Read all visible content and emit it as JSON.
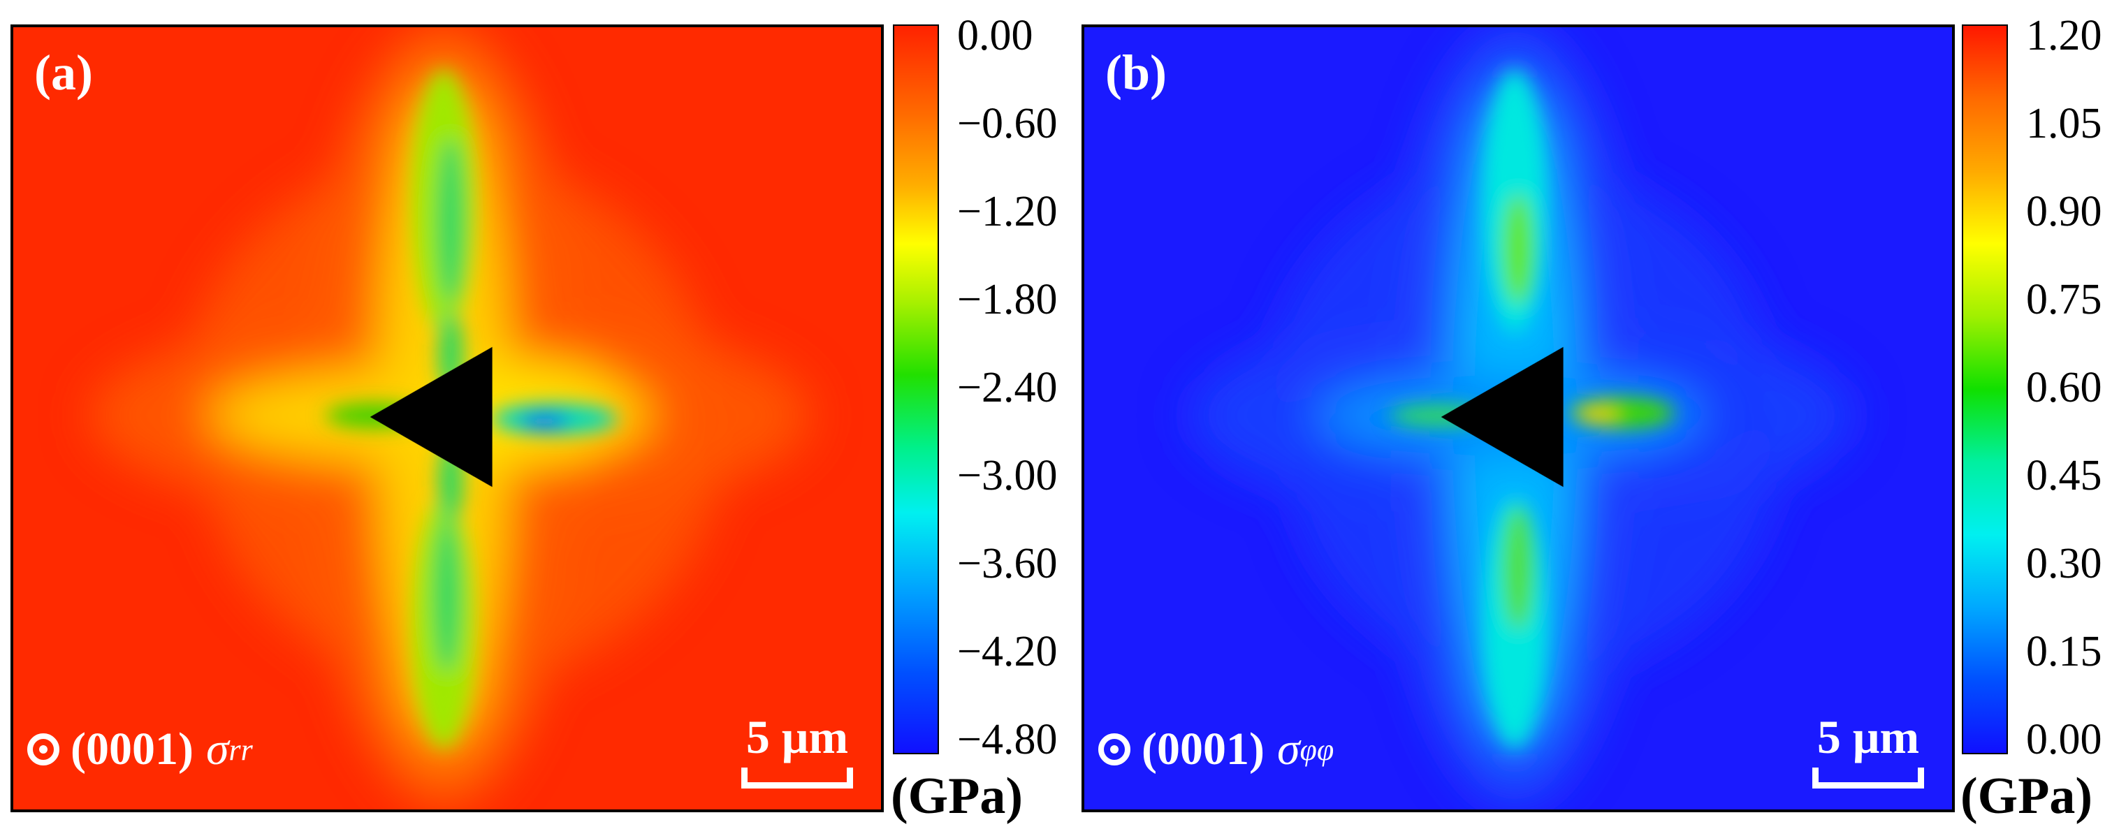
{
  "panel_a": {
    "label": "(a)",
    "plane": "(0001)",
    "stress_symbol": "σ",
    "stress_subscript": "rr",
    "scale_bar": "5 μm",
    "background_color": "#ff2a00",
    "colorbar": {
      "ticks": [
        "0.00",
        "−0.60",
        "−1.20",
        "−1.80",
        "−2.40",
        "−3.00",
        "−3.60",
        "−4.20",
        "−4.80"
      ],
      "unit": "(GPa)"
    }
  },
  "panel_b": {
    "label": "(b)",
    "plane": "(0001)",
    "stress_symbol": "σ",
    "stress_subscript": "φφ",
    "scale_bar": "5 μm",
    "background_color": "#1a1aff",
    "colorbar": {
      "ticks": [
        "1.20",
        "1.05",
        "0.90",
        "0.75",
        "0.60",
        "0.45",
        "0.30",
        "0.15",
        "0.00"
      ],
      "unit": "(GPa)"
    }
  }
}
